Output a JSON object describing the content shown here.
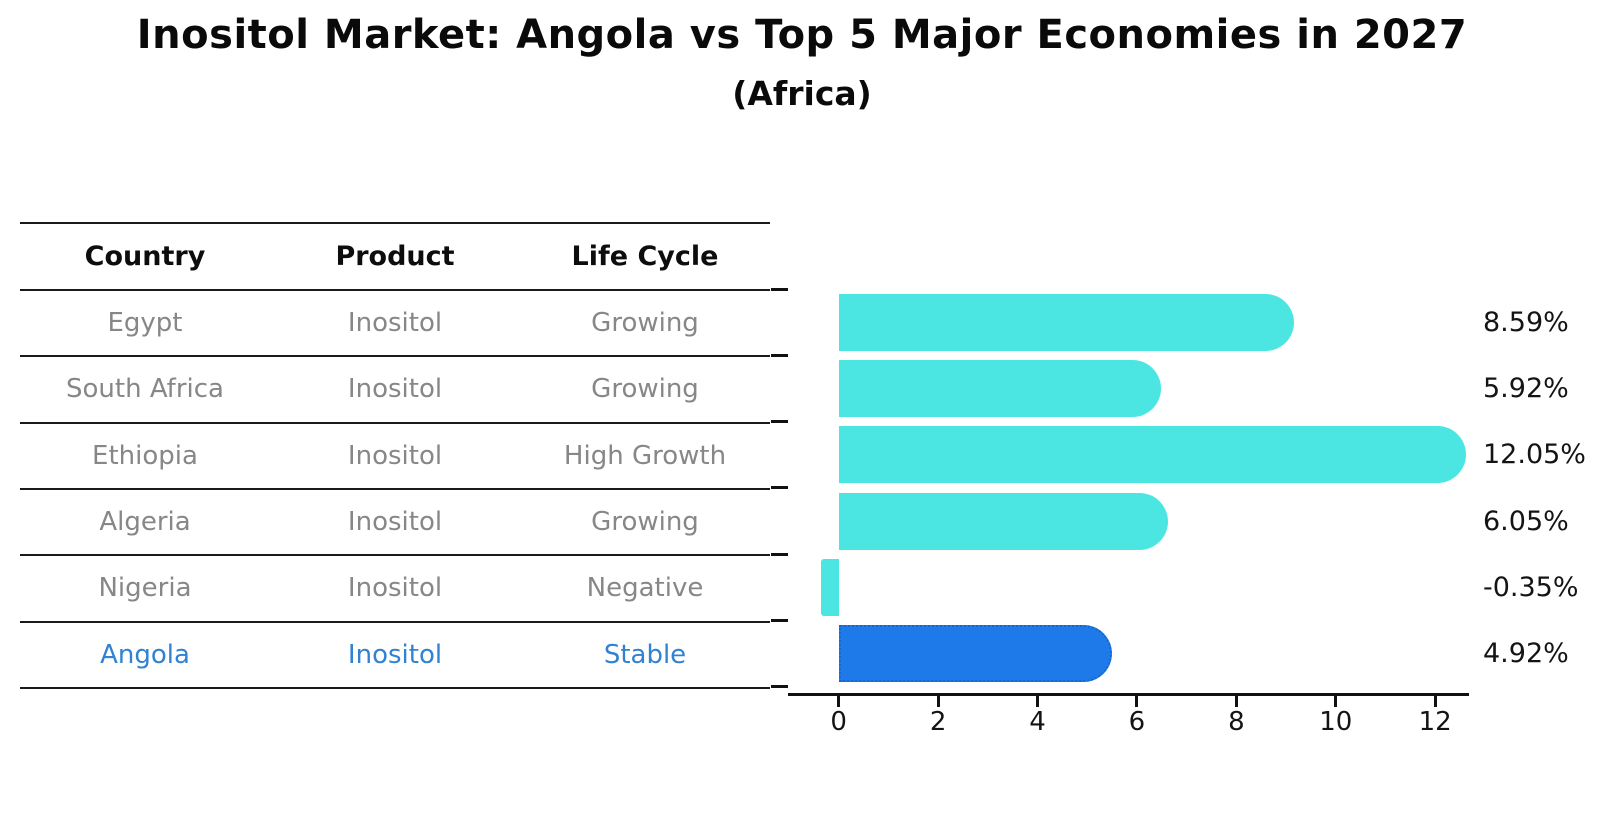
{
  "title": "Inositol Market: Angola vs Top 5 Major Economies in 2027",
  "subtitle": "(Africa)",
  "table": {
    "headers": [
      "Country",
      "Product",
      "Life Cycle"
    ],
    "rows": [
      {
        "country": "Egypt",
        "product": "Inositol",
        "life_cycle": "Growing",
        "highlight": false
      },
      {
        "country": "South Africa",
        "product": "Inositol",
        "life_cycle": "Growing",
        "highlight": false
      },
      {
        "country": "Ethiopia",
        "product": "Inositol",
        "life_cycle": "High Growth",
        "highlight": false
      },
      {
        "country": "Algeria",
        "product": "Inositol",
        "life_cycle": "Growing",
        "highlight": false
      },
      {
        "country": "Nigeria",
        "product": "Inositol",
        "life_cycle": "Negative",
        "highlight": false
      },
      {
        "country": "Angola",
        "product": "Inositol",
        "life_cycle": "Stable",
        "highlight": true
      }
    ]
  },
  "chart_data": {
    "type": "bar",
    "orientation": "horizontal",
    "categories": [
      "Egypt",
      "South Africa",
      "Ethiopia",
      "Algeria",
      "Nigeria",
      "Angola"
    ],
    "values": [
      8.59,
      5.92,
      12.05,
      6.05,
      -0.35,
      4.92
    ],
    "value_labels": [
      "8.59%",
      "5.92%",
      "12.05%",
      "6.05%",
      "-0.35%",
      "4.92%"
    ],
    "xticks": [
      0,
      2,
      4,
      6,
      8,
      10,
      12
    ],
    "xlim": [
      -1.02,
      12.68
    ],
    "grid": false,
    "legend": false,
    "bar_color": "#4BE6E1",
    "highlight_index": 5,
    "highlight_color": "#1E7AE8",
    "highlight_border_color": "#1566CE"
  },
  "colors": {
    "text_muted": "#878787",
    "text_header": "#0d0d0d",
    "highlight_text": "#3182D2",
    "axis": "#111111"
  }
}
